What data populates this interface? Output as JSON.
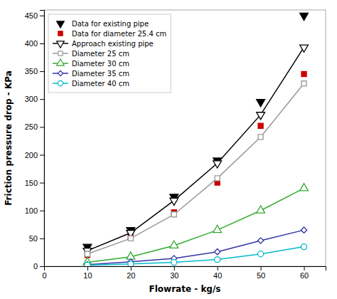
{
  "chart_data": {
    "type": "line",
    "x_label": "Flowrate - kg/s",
    "y_label": "Friction pressure drop - KPa",
    "x": [
      10,
      20,
      30,
      40,
      50,
      60
    ],
    "series": [
      {
        "name": "Data for existing pipe",
        "type": "scatter",
        "color": "black",
        "marker": "triangle-down",
        "values": [
          35,
          65,
          125,
          190,
          295,
          450
        ]
      },
      {
        "name": "Data for diameter 25.4 cm",
        "type": "scatter",
        "color": "#cc0000",
        "marker": "square",
        "values": [
          20,
          52,
          97,
          150,
          252,
          345
        ]
      },
      {
        "name": "Approach existing pipe",
        "type": "line",
        "color": "black",
        "marker": "triangle-down-open",
        "values": [
          28,
          60,
          118,
          185,
          272,
          393
        ]
      },
      {
        "name": "Diameter 25 cm",
        "type": "line",
        "color": "#999999",
        "marker": "square-open",
        "values": [
          22,
          50,
          93,
          158,
          232,
          328
        ]
      },
      {
        "name": "Diameter 30 cm",
        "type": "line",
        "color": "#33aa33",
        "marker": "triangle-open",
        "values": [
          7,
          17,
          37,
          65,
          100,
          140
        ]
      },
      {
        "name": "Diameter 35 cm",
        "type": "line",
        "color": "#3333aa",
        "marker": "diamond-open",
        "values": [
          3,
          8,
          14,
          26,
          46,
          65
        ]
      },
      {
        "name": "Diameter 40 cm",
        "type": "line",
        "color": "#00bbcc",
        "marker": "circle-open",
        "values": [
          2,
          4,
          7,
          12,
          22,
          35
        ]
      }
    ],
    "xlim": [
      0,
      65
    ],
    "ylim": [
      0,
      460
    ],
    "xticks": [
      0,
      10,
      20,
      30,
      40,
      50,
      60
    ],
    "yticks": [
      0,
      50,
      100,
      150,
      200,
      250,
      300,
      350,
      400,
      450
    ],
    "grid": false,
    "legend": "upper-left"
  }
}
